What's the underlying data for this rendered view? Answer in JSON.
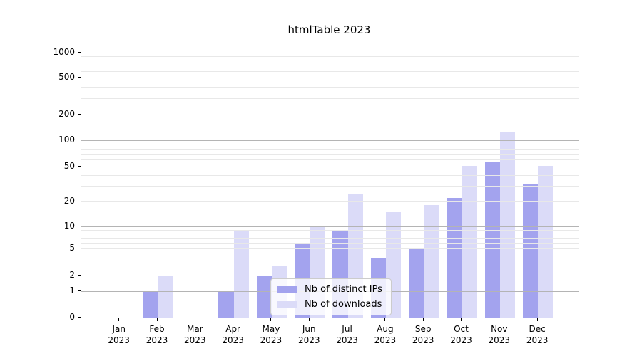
{
  "chart_data": {
    "type": "bar",
    "title": "htmlTable 2023",
    "x": {
      "categories": [
        "Jan",
        "Feb",
        "Mar",
        "Apr",
        "May",
        "Jun",
        "Jul",
        "Aug",
        "Sep",
        "Oct",
        "Nov",
        "Dec"
      ],
      "year_label": "2023"
    },
    "y_axis": {
      "scale": "symlog",
      "ticks": [
        0,
        1,
        2,
        5,
        10,
        20,
        50,
        100,
        200,
        500,
        1000
      ],
      "major_gridlines_at": [
        1,
        10,
        100,
        1000
      ]
    },
    "series": [
      {
        "key": "distinct-ips",
        "name": "Nb of distinct IPs",
        "color": "#a3a3ee",
        "values": [
          0,
          1,
          0,
          1,
          2,
          6,
          9,
          4,
          5,
          22,
          56,
          32
        ]
      },
      {
        "key": "downloads",
        "name": "Nb of downloads",
        "color": "#dbdbf8",
        "values": [
          0,
          2,
          0,
          9,
          3,
          10,
          24,
          15,
          18,
          51,
          124,
          51
        ]
      }
    ],
    "legend": {
      "position": "lower center"
    },
    "colors": {
      "major_grid": "#b4b4b4",
      "minor_grid": "#e8e8e8",
      "axis": "#000000"
    }
  }
}
